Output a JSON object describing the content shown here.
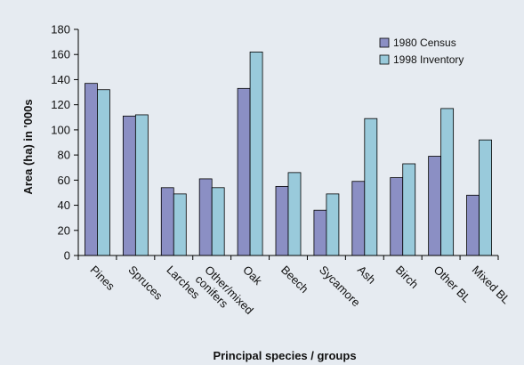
{
  "chart_data": {
    "type": "bar",
    "title": "",
    "xlabel": "Principal species / groups",
    "ylabel": "Area (ha) in '000s",
    "ylim": [
      0,
      180
    ],
    "yticks": [
      "0",
      "20",
      "40",
      "60",
      "80",
      "100",
      "120",
      "140",
      "160",
      "180"
    ],
    "grid": false,
    "legend_position": "top-right",
    "categories": [
      [
        "Pines"
      ],
      [
        "Spruces"
      ],
      [
        "Larches"
      ],
      [
        "Other/mixed",
        "conifers"
      ],
      [
        "Oak"
      ],
      [
        "Beech"
      ],
      [
        "Sycamore"
      ],
      [
        "Ash"
      ],
      [
        "Birch"
      ],
      [
        "Other BL"
      ],
      [
        "Mixed BL"
      ]
    ],
    "series": [
      {
        "name": "1980 Census",
        "color": "#8b8fc4",
        "values": [
          137,
          111,
          54,
          61,
          133,
          55,
          36,
          59,
          62,
          79,
          48
        ]
      },
      {
        "name": "1998 Inventory",
        "color": "#99cadb",
        "values": [
          132,
          112,
          49,
          54,
          162,
          66,
          49,
          109,
          73,
          117,
          92
        ]
      }
    ]
  }
}
